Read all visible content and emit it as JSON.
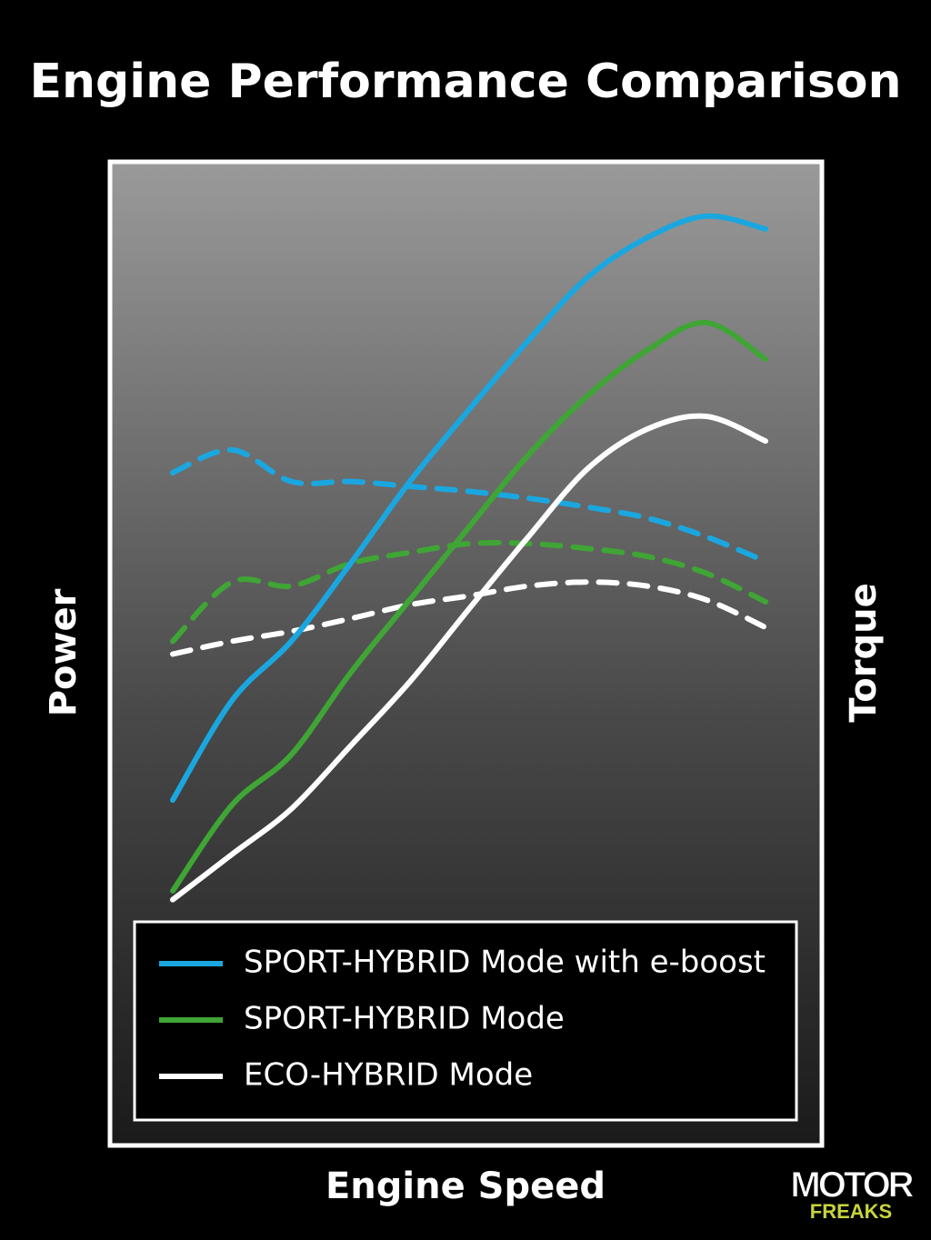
{
  "chart_data": {
    "type": "line",
    "title": "Engine Performance Comparison",
    "x_label": "Engine Speed",
    "y_label": "Power",
    "y2_label": "Torque",
    "xlim": [
      0,
      100
    ],
    "ylim": [
      0,
      100
    ],
    "x": [
      0,
      10,
      20,
      30,
      40,
      50,
      60,
      70,
      80,
      90,
      100
    ],
    "series": [
      {
        "name": "SPORT-HYBRID Mode with e-boost",
        "color": "#1aa7e0",
        "power": [
          35.2,
          45.3,
          51.3,
          59.2,
          67.5,
          74.8,
          81.8,
          88.2,
          92.2,
          94.4,
          93.1
        ],
        "torque": [
          68.4,
          70.7,
          67.5,
          67.5,
          67.0,
          66.5,
          65.8,
          64.9,
          63.8,
          61.9,
          59.4
        ]
      },
      {
        "name": "SPORT-HYBRID Mode",
        "color": "#3fa535",
        "power": [
          26.0,
          34.7,
          39.8,
          48.1,
          55.5,
          62.9,
          70.2,
          76.2,
          80.8,
          83.6,
          79.9
        ],
        "torque": [
          51.3,
          57.3,
          56.9,
          59.2,
          60.3,
          61.2,
          61.2,
          60.7,
          59.9,
          58.2,
          55.3
        ]
      },
      {
        "name": "ECO-HYBRID Mode",
        "color": "#ffffff",
        "power": [
          25.1,
          29.7,
          34.3,
          40.7,
          47.2,
          54.6,
          61.9,
          68.8,
          72.8,
          74.1,
          71.6
        ],
        "torque": [
          50.0,
          51.3,
          52.3,
          53.6,
          55.0,
          55.9,
          56.9,
          57.3,
          56.9,
          55.5,
          52.7
        ]
      }
    ]
  },
  "logo": {
    "top": "MOTOR",
    "bottom": "FREAKS"
  }
}
